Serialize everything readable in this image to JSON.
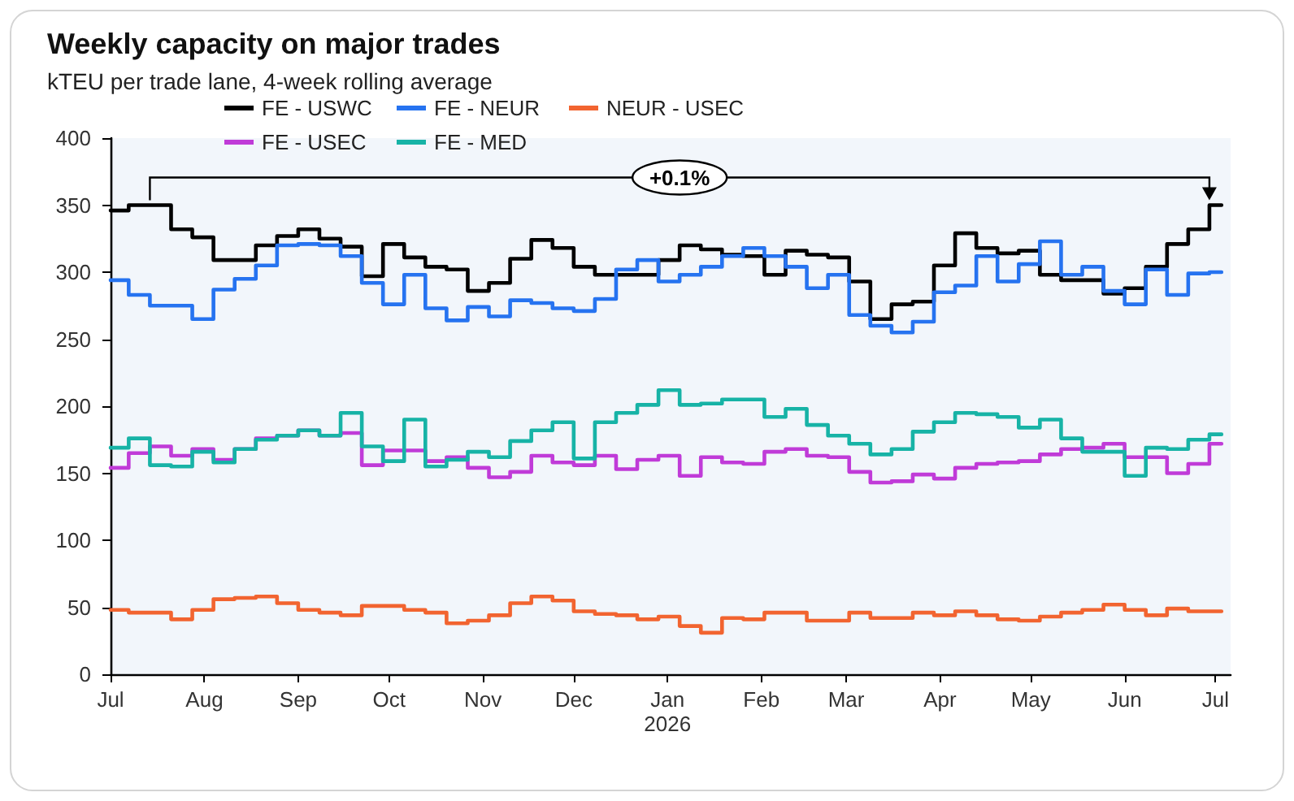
{
  "chart_data": {
    "type": "step",
    "title": "Weekly capacity on major trades",
    "subtitle": "kTEU per trade lane, 4-week rolling average",
    "x": [
      "2025-07-01",
      "2025-07-07",
      "2025-07-14",
      "2025-07-21",
      "2025-07-28",
      "2025-08-04",
      "2025-08-11",
      "2025-08-18",
      "2025-08-25",
      "2025-09-01",
      "2025-09-08",
      "2025-09-15",
      "2025-09-22",
      "2025-09-29",
      "2025-10-06",
      "2025-10-13",
      "2025-10-20",
      "2025-10-27",
      "2025-11-03",
      "2025-11-10",
      "2025-11-17",
      "2025-11-24",
      "2025-12-01",
      "2025-12-08",
      "2025-12-15",
      "2025-12-22",
      "2025-12-29",
      "2026-01-05",
      "2026-01-12",
      "2026-01-19",
      "2026-01-26",
      "2026-02-02",
      "2026-02-09",
      "2026-02-16",
      "2026-02-23",
      "2026-03-02",
      "2026-03-09",
      "2026-03-16",
      "2026-03-23",
      "2026-03-30",
      "2026-04-06",
      "2026-04-13",
      "2026-04-20",
      "2026-04-27",
      "2026-05-04",
      "2026-05-11",
      "2026-05-18",
      "2026-05-25",
      "2026-06-01",
      "2026-06-08",
      "2026-06-15",
      "2026-06-22",
      "2026-06-29",
      "2026-07-03"
    ],
    "series": [
      {
        "name": "FE - USWC",
        "color": "#000000",
        "values": [
          346,
          350,
          350,
          332,
          326,
          309,
          309,
          320,
          327,
          332,
          325,
          319,
          297,
          321,
          311,
          304,
          302,
          286,
          292,
          310,
          324,
          318,
          304,
          298,
          298,
          298,
          309,
          320,
          317,
          313,
          312,
          298,
          316,
          313,
          311,
          293,
          265,
          276,
          278,
          305,
          329,
          318,
          314,
          316,
          298,
          294,
          294,
          284,
          288,
          304,
          321,
          332,
          350,
          350
        ]
      },
      {
        "name": "FE - NEUR",
        "color": "#2673f0",
        "values": [
          294,
          283,
          275,
          275,
          265,
          287,
          295,
          305,
          320,
          321,
          320,
          312,
          292,
          276,
          298,
          273,
          264,
          274,
          267,
          279,
          277,
          273,
          271,
          280,
          302,
          309,
          293,
          298,
          304,
          312,
          318,
          312,
          304,
          288,
          298,
          268,
          260,
          255,
          263,
          285,
          290,
          312,
          293,
          306,
          323,
          298,
          304,
          286,
          276,
          302,
          283,
          299,
          300,
          300
        ]
      },
      {
        "name": "NEUR - USEC",
        "color": "#f26430",
        "values": [
          48,
          46,
          46,
          41,
          48,
          56,
          57,
          58,
          53,
          48,
          46,
          44,
          51,
          51,
          48,
          46,
          38,
          40,
          44,
          53,
          58,
          55,
          47,
          45,
          44,
          41,
          43,
          36,
          31,
          42,
          41,
          46,
          46,
          40,
          40,
          46,
          42,
          42,
          46,
          44,
          47,
          44,
          41,
          40,
          43,
          46,
          48,
          52,
          48,
          44,
          49,
          47,
          47,
          47
        ]
      },
      {
        "name": "FE - USEC",
        "color": "#c03bd8",
        "values": [
          154,
          165,
          170,
          163,
          168,
          160,
          168,
          176,
          178,
          182,
          178,
          180,
          156,
          167,
          167,
          159,
          162,
          154,
          147,
          151,
          163,
          158,
          156,
          163,
          153,
          160,
          163,
          148,
          162,
          158,
          157,
          166,
          168,
          163,
          162,
          151,
          143,
          144,
          149,
          146,
          154,
          157,
          158,
          159,
          164,
          168,
          169,
          172,
          162,
          162,
          150,
          157,
          172,
          172
        ]
      },
      {
        "name": "FE - MED",
        "color": "#17b3a6",
        "values": [
          169,
          176,
          156,
          155,
          166,
          158,
          168,
          175,
          178,
          182,
          178,
          195,
          170,
          159,
          190,
          155,
          160,
          166,
          162,
          174,
          182,
          188,
          161,
          188,
          195,
          201,
          212,
          201,
          202,
          205,
          205,
          192,
          198,
          186,
          178,
          172,
          164,
          168,
          181,
          188,
          195,
          194,
          192,
          184,
          190,
          176,
          166,
          166,
          148,
          169,
          168,
          175,
          179,
          179
        ]
      }
    ],
    "xlim": [
      "2025-07-01",
      "2026-07-06"
    ],
    "xticks": [
      {
        "value": "2025-07-01",
        "label": "Jul"
      },
      {
        "value": "2025-08-01",
        "label": "Aug"
      },
      {
        "value": "2025-09-01",
        "label": "Sep"
      },
      {
        "value": "2025-10-01",
        "label": "Oct"
      },
      {
        "value": "2025-11-01",
        "label": "Nov"
      },
      {
        "value": "2025-12-01",
        "label": "Dec"
      },
      {
        "value": "2026-01-01",
        "label": "Jan\n2026"
      },
      {
        "value": "2026-02-01",
        "label": "Feb"
      },
      {
        "value": "2026-03-01",
        "label": "Mar"
      },
      {
        "value": "2026-04-01",
        "label": "Apr"
      },
      {
        "value": "2026-05-01",
        "label": "May"
      },
      {
        "value": "2026-06-01",
        "label": "Jun"
      },
      {
        "value": "2026-07-01",
        "label": "Jul"
      }
    ],
    "ylim": [
      0,
      400
    ],
    "yticks": [
      0,
      50,
      100,
      150,
      200,
      250,
      300,
      350,
      400
    ],
    "grid": false,
    "legend": "top",
    "marker": "none",
    "line_style": "solid",
    "annotations": [
      "+0.1%"
    ]
  }
}
